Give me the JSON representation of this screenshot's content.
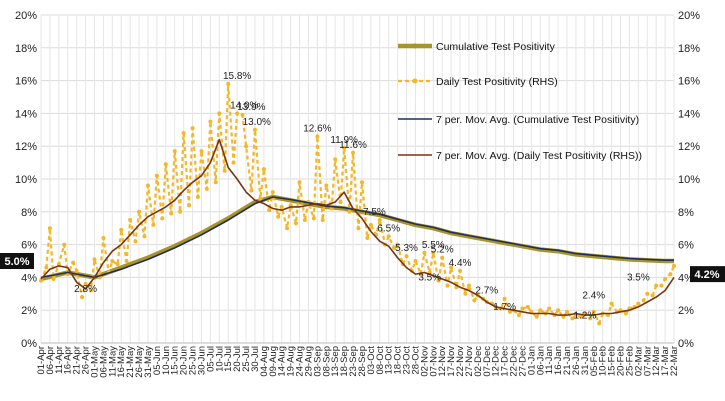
{
  "chart_data": {
    "type": "line",
    "ylim_left": [
      0,
      20
    ],
    "ylim_right": [
      0,
      20
    ],
    "y_ticks": [
      "0%",
      "2%",
      "4%",
      "6%",
      "8%",
      "10%",
      "12%",
      "14%",
      "16%",
      "18%",
      "20%"
    ],
    "x_tick_labels": [
      "01-Apr",
      "06-Apr",
      "11-Apr",
      "16-Apr",
      "21-Apr",
      "26-Apr",
      "01-May",
      "06-May",
      "11-May",
      "16-May",
      "21-May",
      "26-May",
      "31-May",
      "05-Jun",
      "10-Jun",
      "15-Jun",
      "20-Jun",
      "25-Jun",
      "30-Jun",
      "05-Jul",
      "10-Jul",
      "15-Jul",
      "20-Jul",
      "25-Jul",
      "30-Jul",
      "04-Aug",
      "09-Aug",
      "14-Aug",
      "19-Aug",
      "24-Aug",
      "29-Aug",
      "03-Sep",
      "08-Sep",
      "13-Sep",
      "18-Sep",
      "23-Sep",
      "28-Sep",
      "03-Oct",
      "08-Oct",
      "13-Oct",
      "18-Oct",
      "23-Oct",
      "28-Oct",
      "02-Nov",
      "07-Nov",
      "12-Nov",
      "17-Nov",
      "22-Nov",
      "27-Nov",
      "02-Dec",
      "07-Dec",
      "12-Dec",
      "17-Dec",
      "22-Dec",
      "27-Dec",
      "01-Jan",
      "06-Jan",
      "11-Jan",
      "16-Jan",
      "21-Jan",
      "26-Jan",
      "31-Jan",
      "05-Feb",
      "10-Feb",
      "15-Feb",
      "20-Feb",
      "25-Feb",
      "02-Mar",
      "07-Mar",
      "12-Mar",
      "17-Mar",
      "22-Mar"
    ],
    "grid": true,
    "legend_position": "top-right",
    "series": [
      {
        "name": "Cumulative Test Positivity",
        "color": "#a89428",
        "x": [
          "01-Apr",
          "16-Apr",
          "01-May",
          "16-May",
          "31-May",
          "15-Jun",
          "30-Jun",
          "15-Jul",
          "30-Jul",
          "09-Aug",
          "19-Aug",
          "29-Aug",
          "08-Sep",
          "18-Sep",
          "28-Sep",
          "08-Oct",
          "18-Oct",
          "28-Oct",
          "07-Nov",
          "17-Nov",
          "27-Nov",
          "07-Dec",
          "17-Dec",
          "27-Dec",
          "06-Jan",
          "16-Jan",
          "26-Jan",
          "05-Feb",
          "15-Feb",
          "25-Feb",
          "07-Mar",
          "17-Mar",
          "22-Mar"
        ],
        "y": [
          3.9,
          4.3,
          4.0,
          4.6,
          5.2,
          5.9,
          6.7,
          7.6,
          8.6,
          8.9,
          8.7,
          8.5,
          8.3,
          8.2,
          8.0,
          7.8,
          7.5,
          7.2,
          7.0,
          6.7,
          6.5,
          6.3,
          6.1,
          5.9,
          5.7,
          5.6,
          5.4,
          5.3,
          5.2,
          5.1,
          5.05,
          5.0,
          5.0
        ]
      },
      {
        "name": "Daily Test Positivity (RHS)",
        "color": "#f2b829",
        "x": [
          "01-Apr",
          "04-Apr",
          "06-Apr",
          "08-Apr",
          "11-Apr",
          "14-Apr",
          "16-Apr",
          "19-Apr",
          "21-Apr",
          "24-Apr",
          "26-Apr",
          "29-Apr",
          "01-May",
          "04-May",
          "06-May",
          "09-May",
          "11-May",
          "14-May",
          "16-May",
          "19-May",
          "21-May",
          "24-May",
          "26-May",
          "29-May",
          "31-May",
          "03-Jun",
          "05-Jun",
          "08-Jun",
          "10-Jun",
          "13-Jun",
          "15-Jun",
          "18-Jun",
          "20-Jun",
          "23-Jun",
          "25-Jun",
          "28-Jun",
          "30-Jun",
          "03-Jul",
          "05-Jul",
          "08-Jul",
          "10-Jul",
          "13-Jul",
          "15-Jul",
          "18-Jul",
          "20-Jul",
          "23-Jul",
          "25-Jul",
          "28-Jul",
          "30-Jul",
          "02-Aug",
          "04-Aug",
          "07-Aug",
          "09-Aug",
          "12-Aug",
          "14-Aug",
          "17-Aug",
          "19-Aug",
          "22-Aug",
          "24-Aug",
          "27-Aug",
          "29-Aug",
          "01-Sep",
          "03-Sep",
          "06-Sep",
          "08-Sep",
          "11-Sep",
          "13-Sep",
          "16-Sep",
          "18-Sep",
          "21-Sep",
          "23-Sep",
          "26-Sep",
          "28-Sep",
          "01-Oct",
          "03-Oct",
          "06-Oct",
          "08-Oct",
          "11-Oct",
          "13-Oct",
          "16-Oct",
          "18-Oct",
          "21-Oct",
          "23-Oct",
          "26-Oct",
          "28-Oct",
          "31-Oct",
          "02-Nov",
          "05-Nov",
          "07-Nov",
          "10-Nov",
          "12-Nov",
          "15-Nov",
          "17-Nov",
          "20-Nov",
          "22-Nov",
          "25-Nov",
          "27-Nov",
          "30-Nov",
          "02-Dec",
          "05-Dec",
          "07-Dec",
          "10-Dec",
          "12-Dec",
          "15-Dec",
          "17-Dec",
          "20-Dec",
          "22-Dec",
          "25-Dec",
          "27-Dec",
          "30-Dec",
          "01-Jan",
          "04-Jan",
          "06-Jan",
          "09-Jan",
          "11-Jan",
          "14-Jan",
          "16-Jan",
          "19-Jan",
          "21-Jan",
          "24-Jan",
          "26-Jan",
          "29-Jan",
          "31-Jan",
          "03-Feb",
          "05-Feb",
          "08-Feb",
          "10-Feb",
          "13-Feb",
          "15-Feb",
          "18-Feb",
          "20-Feb",
          "23-Feb",
          "25-Feb",
          "28-Feb",
          "02-Mar",
          "05-Mar",
          "07-Mar",
          "10-Mar",
          "12-Mar",
          "15-Mar",
          "17-Mar",
          "20-Mar",
          "22-Mar"
        ],
        "y": [
          3.8,
          4.6,
          7.0,
          3.9,
          4.8,
          6.0,
          4.2,
          4.9,
          4.4,
          2.8,
          3.6,
          3.2,
          5.1,
          4.0,
          6.4,
          4.3,
          5.0,
          4.8,
          6.9,
          5.0,
          7.5,
          6.2,
          8.0,
          6.5,
          9.6,
          7.2,
          10.2,
          7.6,
          10.9,
          7.9,
          11.7,
          8.0,
          12.8,
          8.4,
          13.1,
          8.9,
          11.7,
          9.4,
          13.5,
          9.8,
          14.0,
          10.5,
          15.8,
          11.0,
          14.0,
          13.9,
          12.0,
          9.3,
          13.0,
          8.8,
          10.6,
          8.1,
          9.2,
          7.7,
          8.3,
          7.0,
          8.4,
          7.3,
          9.8,
          7.5,
          8.6,
          7.6,
          12.6,
          7.5,
          9.6,
          8.2,
          11.2,
          8.6,
          11.9,
          8.0,
          11.6,
          7.0,
          9.8,
          6.4,
          7.2,
          6.6,
          7.5,
          6.0,
          6.5,
          5.8,
          6.0,
          4.8,
          5.3,
          4.4,
          5.0,
          4.2,
          5.5,
          4.3,
          5.5,
          3.8,
          5.2,
          3.5,
          4.6,
          3.4,
          4.4,
          3.0,
          3.5,
          2.6,
          2.9,
          2.7,
          2.5,
          2.4,
          2.2,
          2.1,
          2.7,
          1.9,
          2.0,
          1.7,
          2.1,
          2.2,
          1.9,
          1.6,
          2.0,
          1.8,
          2.1,
          1.7,
          2.0,
          1.6,
          1.9,
          1.5,
          1.7,
          1.6,
          1.8,
          1.5,
          1.9,
          1.2,
          1.8,
          1.7,
          2.4,
          1.9,
          2.0,
          1.8,
          2.1,
          2.2,
          2.4,
          2.6,
          3.0,
          2.9,
          3.5,
          3.5,
          3.9,
          4.2,
          4.7
        ]
      },
      {
        "name": "7 per. Mov. Avg. (Cumulative Test Positivity)",
        "color": "#1f2f5a",
        "x": [
          "01-Apr",
          "16-Apr",
          "01-May",
          "16-May",
          "31-May",
          "15-Jun",
          "30-Jun",
          "15-Jul",
          "30-Jul",
          "09-Aug",
          "19-Aug",
          "29-Aug",
          "08-Sep",
          "18-Sep",
          "28-Sep",
          "08-Oct",
          "18-Oct",
          "28-Oct",
          "07-Nov",
          "17-Nov",
          "27-Nov",
          "07-Dec",
          "17-Dec",
          "27-Dec",
          "06-Jan",
          "16-Jan",
          "26-Jan",
          "05-Feb",
          "15-Feb",
          "25-Feb",
          "07-Mar",
          "17-Mar",
          "22-Mar"
        ],
        "y": [
          4.0,
          4.3,
          4.0,
          4.5,
          5.1,
          5.8,
          6.6,
          7.5,
          8.5,
          8.9,
          8.75,
          8.55,
          8.35,
          8.25,
          8.05,
          7.85,
          7.55,
          7.25,
          7.05,
          6.75,
          6.55,
          6.35,
          6.15,
          5.95,
          5.75,
          5.65,
          5.45,
          5.35,
          5.25,
          5.15,
          5.1,
          5.05,
          5.05
        ]
      },
      {
        "name": "7 per. Mov. Avg. (Daily Test Positivity (RHS))",
        "color": "#7a3410",
        "x": [
          "01-Apr",
          "06-Apr",
          "11-Apr",
          "16-Apr",
          "21-Apr",
          "26-Apr",
          "01-May",
          "06-May",
          "11-May",
          "16-May",
          "21-May",
          "26-May",
          "31-May",
          "05-Jun",
          "10-Jun",
          "15-Jun",
          "20-Jun",
          "25-Jun",
          "30-Jun",
          "05-Jul",
          "10-Jul",
          "15-Jul",
          "20-Jul",
          "25-Jul",
          "30-Jul",
          "04-Aug",
          "09-Aug",
          "14-Aug",
          "19-Aug",
          "24-Aug",
          "29-Aug",
          "03-Sep",
          "08-Sep",
          "13-Sep",
          "18-Sep",
          "23-Sep",
          "28-Sep",
          "03-Oct",
          "08-Oct",
          "13-Oct",
          "18-Oct",
          "23-Oct",
          "28-Oct",
          "02-Nov",
          "07-Nov",
          "12-Nov",
          "17-Nov",
          "22-Nov",
          "27-Nov",
          "02-Dec",
          "07-Dec",
          "12-Dec",
          "17-Dec",
          "22-Dec",
          "27-Dec",
          "01-Jan",
          "06-Jan",
          "11-Jan",
          "16-Jan",
          "21-Jan",
          "26-Jan",
          "31-Jan",
          "05-Feb",
          "10-Feb",
          "15-Feb",
          "20-Feb",
          "25-Feb",
          "02-Mar",
          "07-Mar",
          "12-Mar",
          "17-Mar",
          "22-Mar"
        ],
        "y": [
          3.9,
          4.5,
          4.7,
          4.6,
          3.7,
          3.3,
          4.0,
          4.9,
          5.6,
          6.0,
          6.6,
          7.2,
          7.7,
          8.0,
          8.3,
          8.7,
          9.3,
          9.8,
          10.2,
          11.0,
          12.4,
          10.7,
          10.0,
          9.2,
          8.7,
          8.5,
          8.2,
          8.1,
          8.3,
          8.3,
          8.4,
          8.5,
          8.4,
          8.6,
          9.2,
          8.2,
          7.6,
          6.8,
          6.2,
          5.9,
          5.2,
          4.6,
          4.2,
          4.3,
          4.1,
          3.9,
          3.7,
          3.4,
          3.2,
          2.9,
          2.5,
          2.2,
          2.1,
          2.0,
          1.9,
          1.8,
          1.8,
          1.8,
          1.7,
          1.7,
          1.8,
          1.7,
          1.7,
          1.8,
          1.8,
          1.9,
          2.0,
          2.2,
          2.5,
          2.8,
          3.2,
          4.0
        ]
      }
    ],
    "annotations": [
      {
        "text": "15.8%",
        "x": "20-Jul",
        "y": 15.8
      },
      {
        "text": "14.0%",
        "x": "24-Jul",
        "y": 14.0
      },
      {
        "text": "13.9%",
        "x": "28-Jul",
        "y": 13.9
      },
      {
        "text": "13.0%",
        "x": "31-Jul",
        "y": 13.0
      },
      {
        "text": "12.6%",
        "x": "03-Sep",
        "y": 12.6
      },
      {
        "text": "11.9%",
        "x": "18-Sep",
        "y": 11.9
      },
      {
        "text": "11.6%",
        "x": "23-Sep",
        "y": 11.6
      },
      {
        "text": "7.5%",
        "x": "05-Oct",
        "y": 7.5
      },
      {
        "text": "6.5%",
        "x": "13-Oct",
        "y": 6.5
      },
      {
        "text": "5.3%",
        "x": "23-Oct",
        "y": 5.3
      },
      {
        "text": "5.5%",
        "x": "07-Nov",
        "y": 5.5
      },
      {
        "text": "5.2%",
        "x": "12-Nov",
        "y": 5.2
      },
      {
        "text": "3.5%",
        "x": "05-Nov",
        "y": 3.5
      },
      {
        "text": "4.4%",
        "x": "22-Nov",
        "y": 4.4
      },
      {
        "text": "2.7%",
        "x": "07-Dec",
        "y": 2.7
      },
      {
        "text": "1.7%",
        "x": "17-Dec",
        "y": 1.7
      },
      {
        "text": "2.4%",
        "x": "05-Feb",
        "y": 2.4
      },
      {
        "text": "1.2%",
        "x": "31-Jan",
        "y": 1.2
      },
      {
        "text": "3.5%",
        "x": "02-Mar",
        "y": 3.5
      },
      {
        "text": "2.8%",
        "x": "26-Apr",
        "y": 2.8
      }
    ],
    "badges": {
      "left": {
        "text": "5.0%",
        "y": 5.0
      },
      "right": {
        "text": "4.2%",
        "y": 4.2
      }
    }
  }
}
